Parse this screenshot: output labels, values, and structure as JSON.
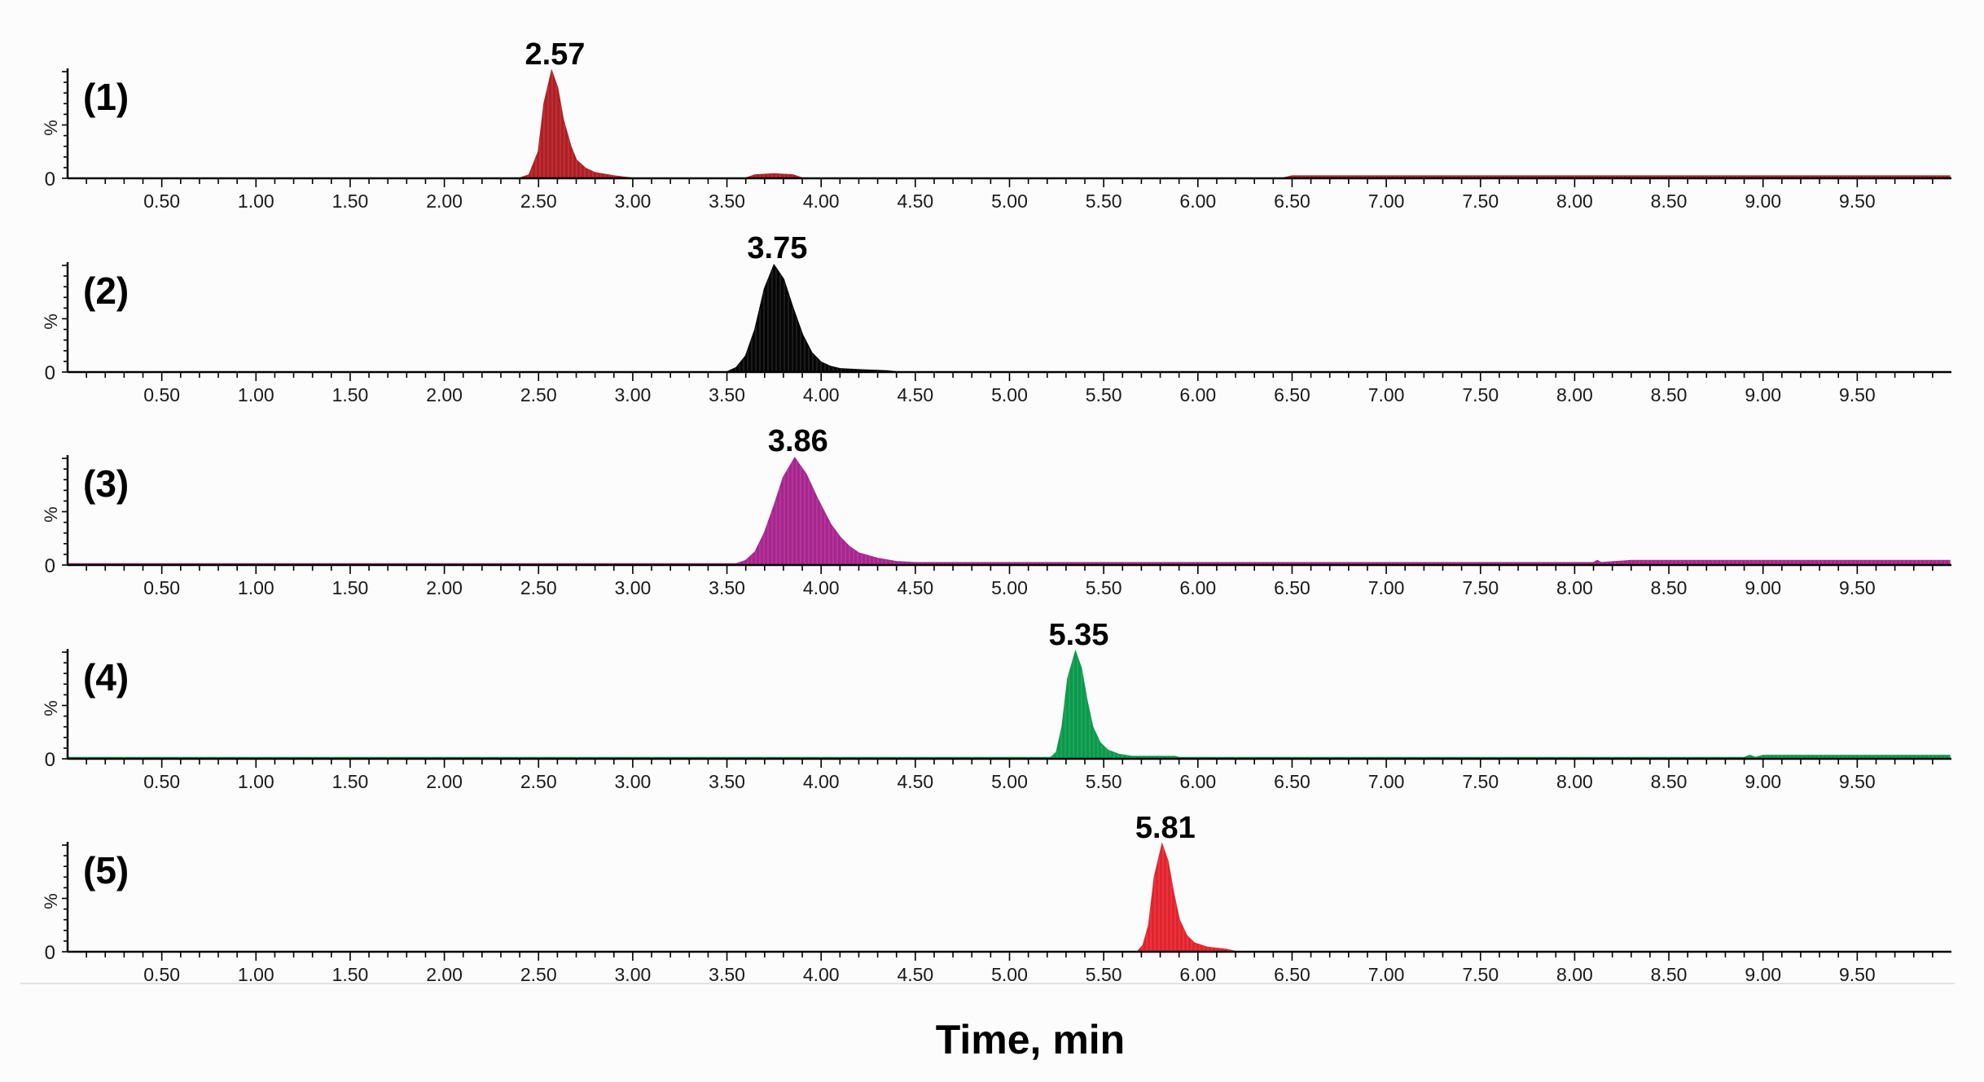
{
  "chart_data": [
    {
      "type": "area",
      "panel_label": "(1)",
      "peak_label": "2.57",
      "color": "#b01e23",
      "y_axis_label": "%",
      "y_zero_label": "0",
      "xlim": [
        0,
        10
      ],
      "ylim": [
        0,
        100
      ],
      "x": [
        0.0,
        2.4,
        2.45,
        2.5,
        2.53,
        2.57,
        2.6,
        2.63,
        2.67,
        2.7,
        2.75,
        2.8,
        2.9,
        3.0,
        3.6,
        3.65,
        3.75,
        3.85,
        3.9,
        6.45,
        6.5,
        9.99
      ],
      "y": [
        0,
        0,
        3,
        25,
        70,
        100,
        85,
        55,
        30,
        17,
        9,
        5,
        2,
        0,
        0,
        3,
        4,
        3,
        0,
        0,
        2,
        2
      ]
    },
    {
      "type": "area",
      "panel_label": "(2)",
      "peak_label": "3.75",
      "color": "#050505",
      "y_axis_label": "%",
      "y_zero_label": "0",
      "xlim": [
        0,
        10
      ],
      "ylim": [
        0,
        100
      ],
      "x": [
        0.0,
        3.5,
        3.55,
        3.6,
        3.65,
        3.7,
        3.75,
        3.8,
        3.85,
        3.9,
        3.95,
        4.0,
        4.05,
        4.1,
        4.2,
        4.35,
        4.4,
        9.99
      ],
      "y": [
        0,
        0,
        4,
        15,
        40,
        78,
        100,
        87,
        60,
        35,
        18,
        9,
        5,
        3,
        2,
        1,
        0,
        0
      ]
    },
    {
      "type": "area",
      "panel_label": "(3)",
      "peak_label": "3.86",
      "color": "#a8248e",
      "y_axis_label": "%",
      "y_zero_label": "0",
      "xlim": [
        0,
        10
      ],
      "ylim": [
        0,
        100
      ],
      "x": [
        0.0,
        3.55,
        3.6,
        3.65,
        3.7,
        3.75,
        3.8,
        3.86,
        3.92,
        3.98,
        4.05,
        4.1,
        4.15,
        4.2,
        4.3,
        4.4,
        4.5,
        8.1,
        8.12,
        8.14,
        8.3,
        9.99
      ],
      "y": [
        1,
        1,
        4,
        12,
        30,
        55,
        82,
        100,
        85,
        62,
        38,
        26,
        17,
        11,
        6,
        3,
        2,
        2,
        4,
        2,
        4,
        4
      ]
    },
    {
      "type": "area",
      "panel_label": "(4)",
      "peak_label": "5.35",
      "color": "#0a9a4c",
      "y_axis_label": "%",
      "y_zero_label": "0",
      "xlim": [
        0,
        10
      ],
      "ylim": [
        0,
        100
      ],
      "x": [
        0.0,
        5.22,
        5.25,
        5.28,
        5.31,
        5.35,
        5.38,
        5.41,
        5.44,
        5.48,
        5.52,
        5.58,
        5.65,
        5.88,
        5.9,
        8.9,
        8.93,
        8.96,
        9.0,
        9.99
      ],
      "y": [
        1,
        1,
        6,
        30,
        75,
        100,
        85,
        55,
        30,
        15,
        8,
        4,
        2,
        2,
        1,
        1,
        3,
        1,
        3,
        3
      ]
    },
    {
      "type": "area",
      "panel_label": "(5)",
      "peak_label": "5.81",
      "color": "#e3232d",
      "y_axis_label": "%",
      "y_zero_label": "0",
      "xlim": [
        0,
        10
      ],
      "ylim": [
        0,
        100
      ],
      "x": [
        0.0,
        5.68,
        5.71,
        5.74,
        5.77,
        5.81,
        5.84,
        5.87,
        5.9,
        5.94,
        5.98,
        6.05,
        6.15,
        6.2,
        9.99
      ],
      "y": [
        0,
        0,
        6,
        25,
        70,
        100,
        85,
        55,
        30,
        15,
        8,
        4,
        2,
        0,
        0
      ]
    }
  ],
  "x_ticks": [
    "0.50",
    "1.00",
    "1.50",
    "2.00",
    "2.50",
    "3.00",
    "3.50",
    "4.00",
    "4.50",
    "5.00",
    "5.50",
    "6.00",
    "6.50",
    "7.00",
    "7.50",
    "8.00",
    "8.50",
    "9.00",
    "9.50"
  ],
  "x_tick_values": [
    0.5,
    1.0,
    1.5,
    2.0,
    2.5,
    3.0,
    3.5,
    4.0,
    4.5,
    5.0,
    5.5,
    6.0,
    6.5,
    7.0,
    7.5,
    8.0,
    8.5,
    9.0,
    9.5
  ],
  "xlabel": "Time, min"
}
